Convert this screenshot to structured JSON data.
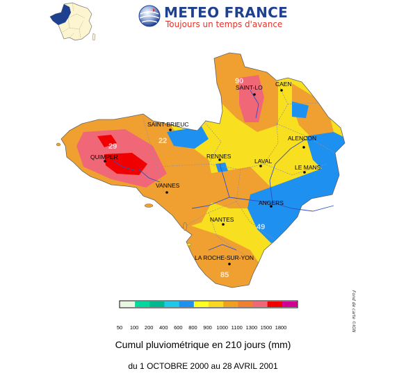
{
  "header": {
    "brand_title": "METEO FRANCE",
    "brand_tagline": "Toujours un temps d'avance"
  },
  "map": {
    "title": "Cumul pluviométrique en 210 jours (mm)",
    "period": "du 1 OCTOBRE 2000 au 28 AVRIL 2001",
    "credit": "Fond de carte ©IGN",
    "cities": [
      {
        "name": "CAEN"
      },
      {
        "name": "SAINT-LO"
      },
      {
        "name": "SAINT-BRIEUC"
      },
      {
        "name": "ALENCON"
      },
      {
        "name": "QUIMPER"
      },
      {
        "name": "RENNES"
      },
      {
        "name": "LAVAL"
      },
      {
        "name": "LE MANS"
      },
      {
        "name": "VANNES"
      },
      {
        "name": "ANGERS"
      },
      {
        "name": "NANTES"
      },
      {
        "name": "LA ROCHE-SUR-YON"
      }
    ],
    "value_labels": [
      "29",
      "22",
      "49",
      "85",
      "90"
    ]
  },
  "legend": {
    "ticks": [
      "50",
      "100",
      "200",
      "400",
      "600",
      "800",
      "900",
      "1000",
      "1100",
      "1300",
      "1500",
      "1800"
    ],
    "colors": [
      "#e8f8e0",
      "#00d8a0",
      "#00b890",
      "#20c8e8",
      "#1e90f0",
      "#ffff20",
      "#f8d820",
      "#f0a020",
      "#f08030",
      "#f06878",
      "#f00000",
      "#d00090"
    ]
  },
  "colors": {
    "brand_blue": "#1f3f8f",
    "brand_red": "#e2322b",
    "rain_yellow": "#f8e020",
    "rain_orange": "#f0a030",
    "rain_blue": "#1e90f0",
    "rain_red": "#f00000",
    "rain_pink": "#f06878",
    "river_blue": "#3050c8"
  }
}
